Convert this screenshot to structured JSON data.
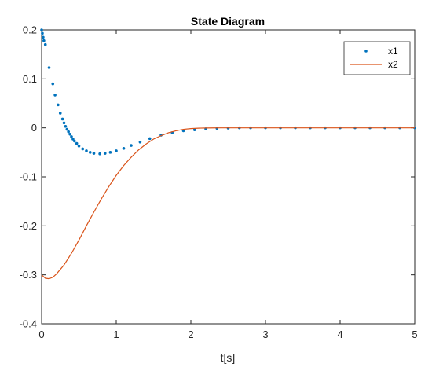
{
  "chart_data": {
    "type": "line",
    "title": "State Diagram",
    "xlabel": "t[s]",
    "ylabel": "",
    "xlim": [
      0,
      5
    ],
    "ylim": [
      -0.4,
      0.2
    ],
    "xticks": [
      "0",
      "1",
      "2",
      "3",
      "4",
      "5"
    ],
    "yticks": [
      "0.2",
      "0.1",
      "0",
      "-0.1",
      "-0.2",
      "-0.3",
      "-0.4"
    ],
    "grid": false,
    "legend_position": "top-right",
    "series": [
      {
        "name": "x1",
        "style": "markers",
        "color": "#0072BD",
        "x": [
          0,
          0.01,
          0.02,
          0.03,
          0.05,
          0.1,
          0.15,
          0.18,
          0.22,
          0.25,
          0.28,
          0.3,
          0.32,
          0.34,
          0.36,
          0.38,
          0.4,
          0.42,
          0.44,
          0.47,
          0.5,
          0.55,
          0.6,
          0.65,
          0.7,
          0.78,
          0.85,
          0.92,
          1.0,
          1.1,
          1.2,
          1.32,
          1.45,
          1.6,
          1.75,
          1.9,
          2.05,
          2.2,
          2.35,
          2.5,
          2.65,
          2.8,
          3.0,
          3.2,
          3.4,
          3.6,
          3.8,
          4.0,
          4.2,
          4.4,
          4.6,
          4.8,
          5.0
        ],
        "values": [
          0.2,
          0.193,
          0.185,
          0.178,
          0.17,
          0.123,
          0.09,
          0.067,
          0.047,
          0.03,
          0.018,
          0.01,
          0.003,
          -0.003,
          -0.008,
          -0.013,
          -0.018,
          -0.023,
          -0.027,
          -0.032,
          -0.037,
          -0.043,
          -0.047,
          -0.05,
          -0.052,
          -0.053,
          -0.052,
          -0.05,
          -0.047,
          -0.042,
          -0.036,
          -0.029,
          -0.022,
          -0.015,
          -0.01,
          -0.006,
          -0.004,
          -0.002,
          -0.001,
          -0.0005,
          0,
          0,
          0,
          0,
          0,
          0,
          0,
          0,
          0,
          0,
          0,
          0,
          0
        ]
      },
      {
        "name": "x2",
        "style": "line",
        "color": "#D95319",
        "x": [
          0,
          0.05,
          0.1,
          0.15,
          0.2,
          0.3,
          0.4,
          0.5,
          0.6,
          0.7,
          0.8,
          0.9,
          1.0,
          1.1,
          1.2,
          1.3,
          1.4,
          1.5,
          1.6,
          1.7,
          1.8,
          1.9,
          2.0,
          2.1,
          2.2,
          2.3,
          2.4,
          2.5,
          2.6,
          2.8,
          3.0,
          3.3,
          3.6,
          4.0,
          4.5,
          5.0
        ],
        "values": [
          -0.3,
          -0.307,
          -0.308,
          -0.305,
          -0.298,
          -0.28,
          -0.256,
          -0.229,
          -0.2,
          -0.172,
          -0.145,
          -0.12,
          -0.097,
          -0.077,
          -0.06,
          -0.045,
          -0.033,
          -0.023,
          -0.016,
          -0.01,
          -0.006,
          -0.003,
          -0.0015,
          -0.0007,
          -0.0003,
          -0.0001,
          0,
          0,
          0,
          0,
          0,
          0,
          0,
          0,
          0,
          0
        ]
      }
    ]
  }
}
